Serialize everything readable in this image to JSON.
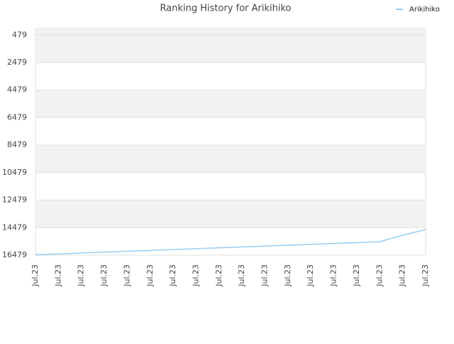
{
  "chart_data": {
    "type": "line",
    "title": "Ranking History for Arikihiko",
    "categories": [
      "Jul.23",
      "Jul.23",
      "Jul.23",
      "Jul.23",
      "Jul.23",
      "Jul.23",
      "Jul.23",
      "Jul.23",
      "Jul.23",
      "Jul.23",
      "Jul.23",
      "Jul.23",
      "Jul.23",
      "Jul.23",
      "Jul.23",
      "Jul.23",
      "Jul.23",
      "Jul.23"
    ],
    "series": [
      {
        "name": "Arikihiko",
        "color": "#99ccf0",
        "values": [
          16450,
          16387,
          16324,
          16261,
          16198,
          16135,
          16072,
          16009,
          15946,
          15883,
          15820,
          15757,
          15694,
          15631,
          15568,
          15505,
          15034,
          14621
        ]
      }
    ],
    "ylim": [
      0,
      16479
    ],
    "y_inverted": true,
    "yticks": [
      479,
      2479,
      4479,
      6479,
      8479,
      10479,
      12479,
      14479,
      16479
    ],
    "grid": true,
    "legend": "top-right"
  }
}
